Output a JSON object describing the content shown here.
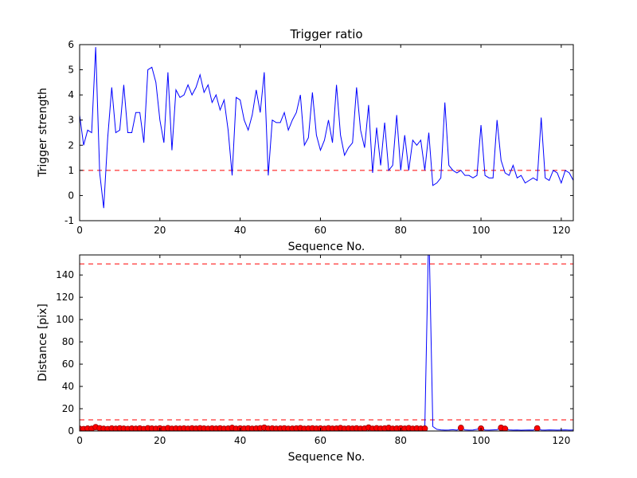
{
  "figure": {
    "background": "#ffffff",
    "line_color": "#0000ff",
    "threshold_color": "#ff0000",
    "marker_color": "#ff0000",
    "marker_edge_color": "#990000",
    "axis_color": "#000000"
  },
  "chart_data": [
    {
      "type": "line",
      "title": "Trigger ratio",
      "xlabel": "Sequence No.",
      "ylabel": "Trigger strength",
      "xlim": [
        0,
        123
      ],
      "ylim": [
        -1,
        6
      ],
      "xticks": [
        0,
        20,
        40,
        60,
        80,
        100,
        120
      ],
      "yticks": [
        -1,
        0,
        1,
        2,
        3,
        4,
        5,
        6
      ],
      "grid": false,
      "legend": "none",
      "thresholds": [
        1
      ],
      "series": [
        {
          "name": "trigger-strength",
          "values": [
            3.2,
            2.0,
            2.6,
            2.5,
            5.9,
            0.9,
            -0.5,
            2.3,
            4.3,
            2.5,
            2.6,
            4.4,
            2.5,
            2.5,
            3.3,
            3.3,
            2.1,
            5.0,
            5.1,
            4.5,
            3.0,
            2.1,
            4.9,
            1.8,
            4.2,
            3.9,
            4.0,
            4.4,
            4.0,
            4.3,
            4.8,
            4.1,
            4.4,
            3.7,
            4.0,
            3.4,
            3.8,
            2.6,
            0.8,
            3.9,
            3.8,
            3.0,
            2.6,
            3.2,
            4.2,
            3.3,
            4.9,
            0.8,
            3.0,
            2.9,
            2.9,
            3.3,
            2.6,
            3.0,
            3.3,
            4.0,
            2.0,
            2.3,
            4.1,
            2.4,
            1.8,
            2.2,
            3.0,
            2.1,
            4.4,
            2.4,
            1.6,
            1.9,
            2.1,
            4.3,
            2.6,
            1.9,
            3.6,
            0.9,
            2.7,
            1.2,
            2.9,
            1.0,
            1.2,
            3.2,
            1.0,
            2.4,
            1.0,
            2.2,
            2.0,
            2.2,
            1.0,
            2.5,
            0.4,
            0.5,
            0.7,
            3.7,
            1.2,
            1.0,
            0.9,
            1.0,
            0.8,
            0.8,
            0.7,
            0.8,
            2.8,
            0.8,
            0.7,
            0.7,
            3.0,
            1.4,
            0.9,
            0.8,
            1.2,
            0.7,
            0.8,
            0.5,
            0.6,
            0.7,
            0.6,
            3.1,
            0.7,
            0.6,
            1.0,
            0.9,
            0.5,
            1.0,
            0.9,
            0.6
          ]
        }
      ]
    },
    {
      "type": "line",
      "title": "",
      "xlabel": "Sequence No.",
      "ylabel": "Distance [pix]",
      "xlim": [
        0,
        123
      ],
      "ylim": [
        0,
        158
      ],
      "xticks": [
        0,
        20,
        40,
        60,
        80,
        100,
        120
      ],
      "yticks": [
        0,
        20,
        40,
        60,
        80,
        100,
        120,
        140
      ],
      "grid": false,
      "legend": "none",
      "thresholds": [
        150,
        10
      ],
      "series": [
        {
          "name": "distance",
          "values": [
            2.0,
            1.8,
            2.2,
            2.0,
            3.5,
            2.5,
            2.0,
            1.8,
            2.3,
            2.0,
            2.4,
            2.1,
            1.9,
            2.2,
            2.0,
            2.3,
            1.8,
            2.5,
            2.2,
            2.0,
            2.4,
            1.9,
            2.6,
            2.0,
            2.2,
            2.1,
            2.3,
            2.0,
            2.4,
            2.1,
            2.5,
            2.2,
            2.0,
            2.3,
            2.1,
            2.4,
            2.0,
            2.2,
            2.8,
            2.0,
            2.3,
            2.1,
            2.4,
            2.0,
            2.2,
            2.5,
            3.0,
            2.1,
            2.3,
            2.0,
            2.2,
            2.4,
            2.0,
            2.1,
            2.3,
            2.6,
            2.0,
            2.2,
            2.4,
            2.1,
            2.3,
            2.0,
            2.5,
            2.1,
            2.2,
            2.7,
            2.0,
            2.3,
            2.1,
            2.4,
            2.0,
            2.2,
            3.1,
            2.0,
            2.5,
            2.1,
            2.3,
            2.8,
            2.0,
            2.2,
            2.4,
            2.1,
            2.6,
            2.0,
            2.3,
            2.1,
            2.2,
            185.0,
            4.0,
            1.5,
            1.0,
            0.8,
            0.9,
            1.2,
            0.8,
            2.8,
            1.0,
            0.8,
            0.9,
            1.5,
            2.2,
            0.9,
            0.8,
            1.0,
            1.2,
            2.9,
            2.0,
            1.0,
            0.8,
            0.9,
            0.7,
            0.8,
            0.9,
            0.8,
            2.4,
            0.9,
            0.8,
            1.0,
            0.9,
            0.8,
            0.9,
            1.0,
            0.8,
            0.9
          ]
        }
      ],
      "markers": {
        "x": [
          0,
          1,
          2,
          3,
          4,
          5,
          6,
          7,
          8,
          9,
          10,
          11,
          12,
          13,
          14,
          15,
          16,
          17,
          18,
          19,
          20,
          21,
          22,
          23,
          24,
          25,
          26,
          27,
          28,
          29,
          30,
          31,
          32,
          33,
          34,
          35,
          36,
          37,
          38,
          39,
          40,
          41,
          42,
          43,
          44,
          45,
          46,
          47,
          48,
          49,
          50,
          51,
          52,
          53,
          54,
          55,
          56,
          57,
          58,
          59,
          60,
          61,
          62,
          63,
          64,
          65,
          66,
          67,
          68,
          69,
          70,
          71,
          72,
          73,
          74,
          75,
          76,
          77,
          78,
          79,
          80,
          81,
          82,
          83,
          84,
          85,
          86,
          95,
          100,
          105,
          106,
          114
        ]
      }
    }
  ]
}
